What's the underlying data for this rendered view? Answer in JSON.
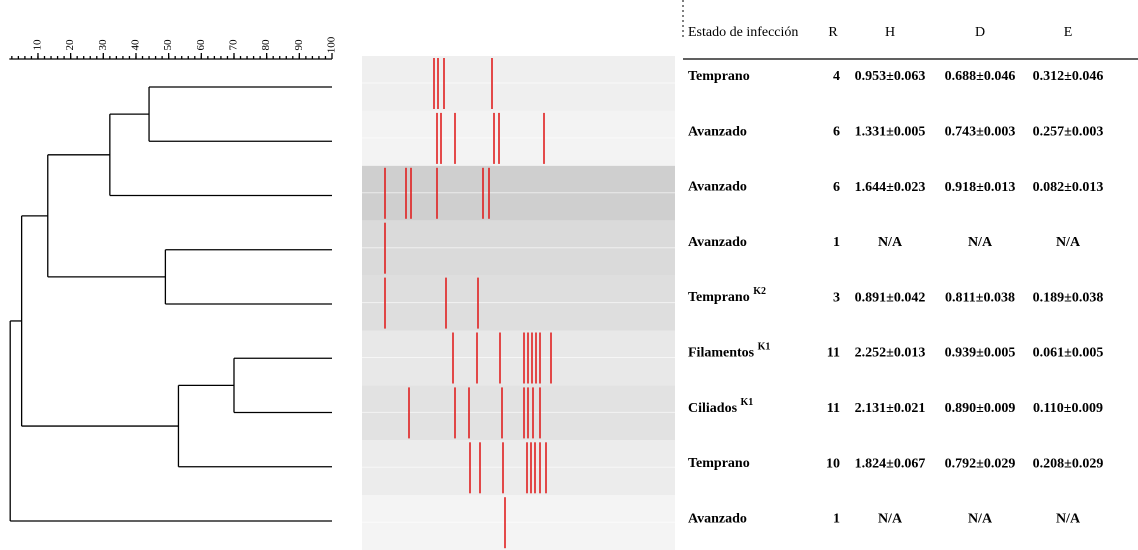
{
  "scale": {
    "ticks": [
      10,
      20,
      30,
      40,
      50,
      60,
      70,
      80,
      90,
      100
    ],
    "lim": [
      0,
      100
    ]
  },
  "dendrogram": {
    "merges": [
      {
        "value": 44
      },
      {
        "value": 32
      },
      {
        "value": 49
      },
      {
        "value": 13
      },
      {
        "value": 70
      },
      {
        "value": 53
      },
      {
        "value": 5
      },
      {
        "value": 1.5
      }
    ]
  },
  "table": {
    "header": [
      "Estado de infección",
      "R",
      "H",
      "D",
      "E"
    ],
    "rows": [
      {
        "state": "Temprano",
        "values": [
          4,
          "0.953±0.063",
          "0.688±0.046",
          "0.312±0.046"
        ]
      },
      {
        "state": "Avanzado",
        "values": [
          6,
          "1.331±0.005",
          "0.743±0.003",
          "0.257±0.003"
        ]
      },
      {
        "state": "Avanzado",
        "values": [
          6,
          "1.644±0.023",
          "0.918±0.013",
          "0.082±0.013"
        ]
      },
      {
        "state": "Avanzado",
        "values": [
          1,
          "N/A",
          "N/A",
          "N/A"
        ]
      },
      {
        "state": "Temprano",
        "sup": "K2",
        "values": [
          3,
          "0.891±0.042",
          "0.811±0.038",
          "0.189±0.038"
        ]
      },
      {
        "state": "Filamentos",
        "sup": "K1",
        "values": [
          11,
          "2.252±0.013",
          "0.939±0.005",
          "0.061±0.005"
        ]
      },
      {
        "state": "Ciliados",
        "sup": "K1",
        "values": [
          11,
          "2.131±0.021",
          "0.890±0.009",
          "0.110±0.009"
        ]
      },
      {
        "state": "Temprano",
        "values": [
          10,
          "1.824±0.067",
          "0.792±0.029",
          "0.208±0.029"
        ]
      },
      {
        "state": "Avanzado",
        "values": [
          1,
          "N/A",
          "N/A",
          "N/A"
        ]
      }
    ]
  }
}
